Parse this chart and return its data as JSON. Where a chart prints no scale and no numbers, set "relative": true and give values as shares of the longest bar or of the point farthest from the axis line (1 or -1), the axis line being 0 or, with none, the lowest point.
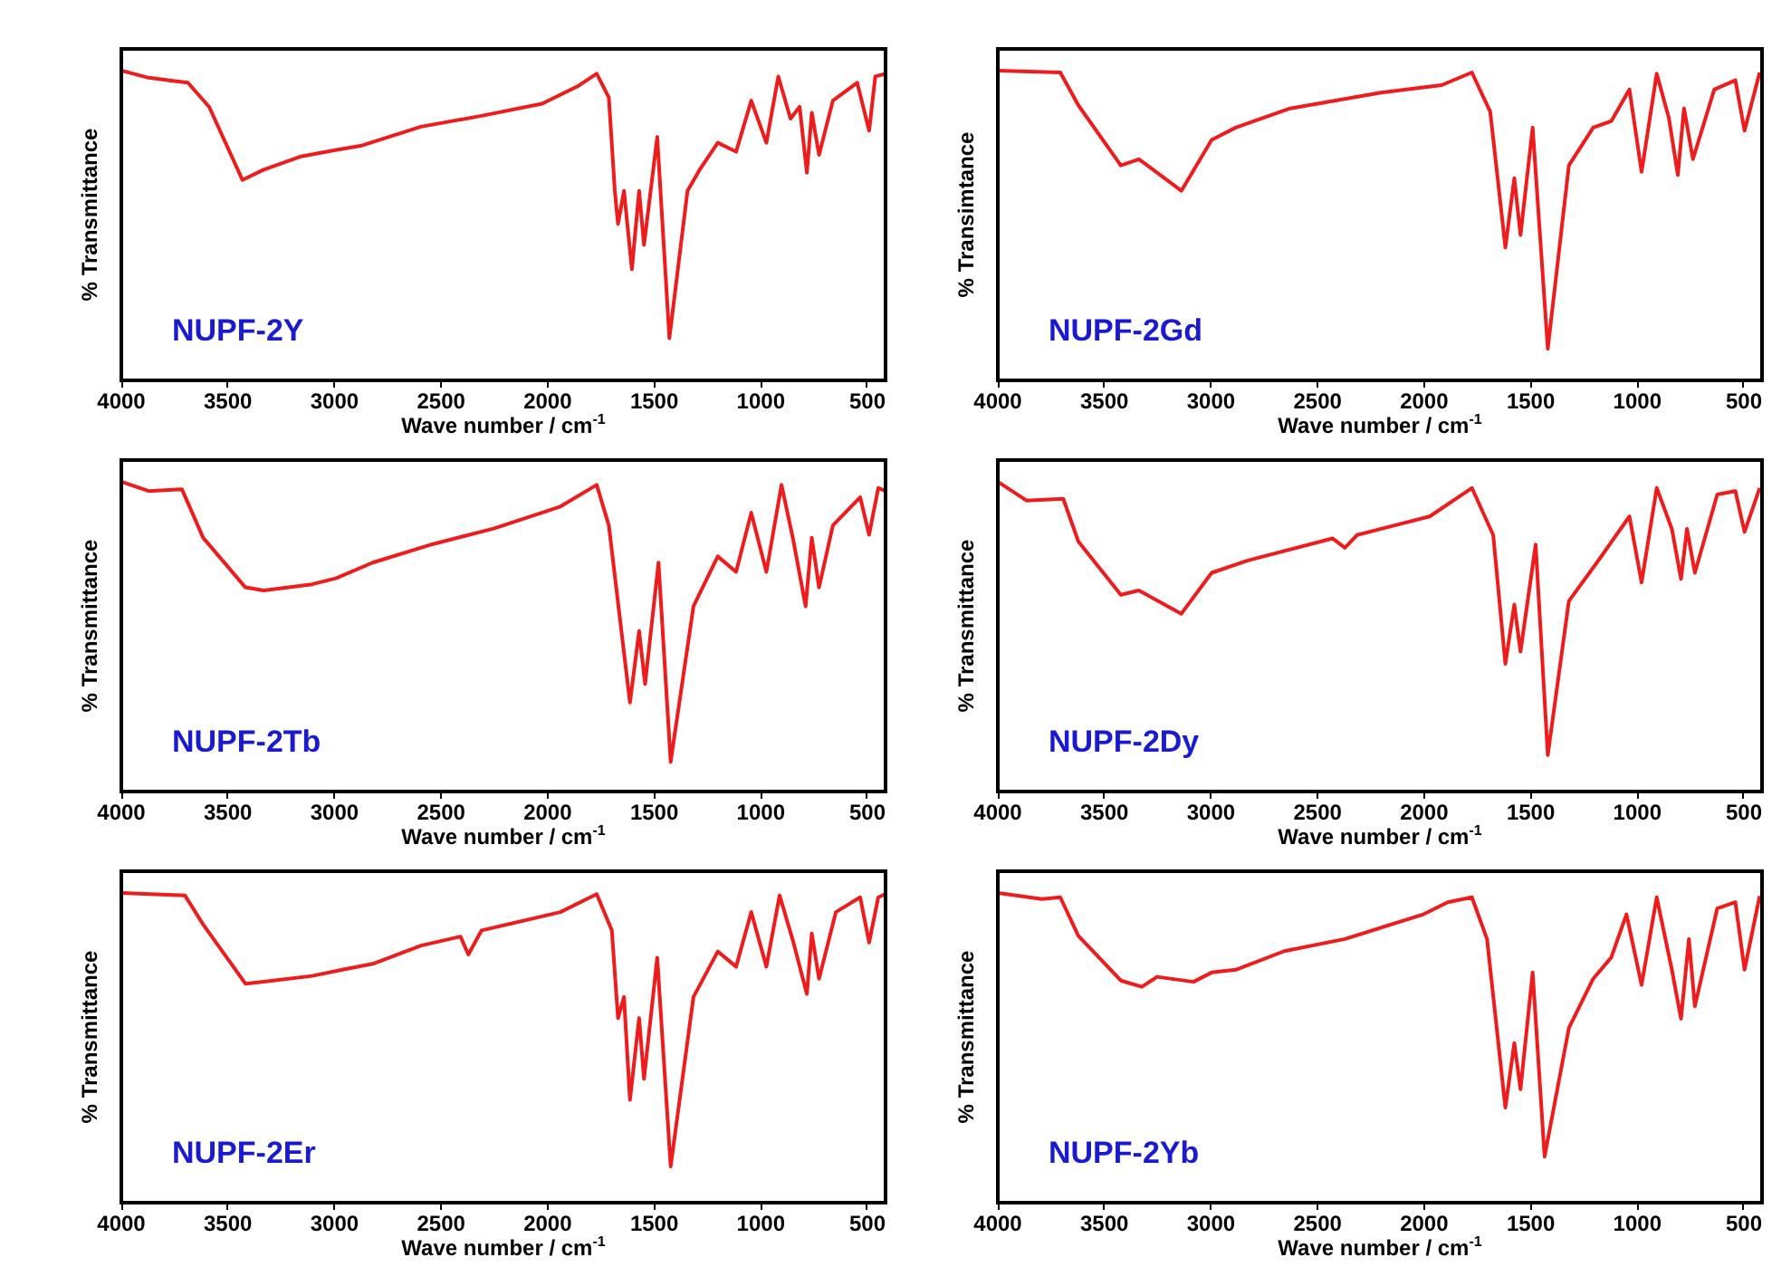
{
  "chart_data": [
    {
      "type": "line",
      "ylabel": "% Transmittance",
      "xlabel": "Wave number / cm$^{-1}$",
      "relative": true,
      "xlim": [
        4000,
        415
      ],
      "xticks": [
        4000,
        3500,
        3000,
        2500,
        2000,
        1500,
        1000,
        500
      ],
      "annotations": [
        "NUPF-2Y"
      ],
      "x": [
        4000,
        3872,
        3759,
        3688,
        3588,
        3432,
        3332,
        3162,
        2991,
        2878,
        2594,
        2310,
        2026,
        1855,
        1770,
        1713,
        1685,
        1670,
        1642,
        1605,
        1571,
        1548,
        1486,
        1429,
        1344,
        1287,
        1202,
        1116,
        1045,
        974,
        918,
        861,
        818,
        784,
        761,
        727,
        662,
        548,
        492,
        463,
        415
      ],
      "series": [
        {
          "color": "#ee1c1c",
          "values": [
            1.0,
            0.977,
            0.967,
            0.961,
            0.883,
            0.647,
            0.68,
            0.722,
            0.744,
            0.757,
            0.819,
            0.854,
            0.893,
            0.951,
            0.99,
            0.913,
            0.612,
            0.505,
            0.612,
            0.359,
            0.612,
            0.437,
            0.786,
            0.136,
            0.612,
            0.68,
            0.767,
            0.738,
            0.903,
            0.767,
            0.981,
            0.845,
            0.883,
            0.67,
            0.864,
            0.728,
            0.903,
            0.961,
            0.806,
            0.981,
            0.99
          ]
        }
      ]
    },
    {
      "type": "line",
      "ylabel": "% Transimtance",
      "xlabel": "Wave number / cm$^{-1}$",
      "relative": true,
      "xlim": [
        4000,
        415
      ],
      "xticks": [
        4000,
        3500,
        3000,
        2500,
        2000,
        1500,
        1000,
        500
      ],
      "annotations": [
        "NUPF-2Gd"
      ],
      "x": [
        4000,
        3707,
        3622,
        3423,
        3338,
        3139,
        2997,
        2884,
        2628,
        2202,
        1918,
        1776,
        1690,
        1619,
        1577,
        1548,
        1491,
        1420,
        1321,
        1207,
        1122,
        1037,
        980,
        909,
        852,
        810,
        781,
        739,
        639,
        540,
        497,
        426
      ],
      "series": [
        {
          "color": "#ee1c1c",
          "values": [
            1.0,
            0.994,
            0.888,
            0.694,
            0.714,
            0.612,
            0.776,
            0.816,
            0.878,
            0.929,
            0.953,
            0.994,
            0.867,
            0.429,
            0.653,
            0.469,
            0.816,
            0.102,
            0.694,
            0.816,
            0.837,
            0.939,
            0.673,
            0.99,
            0.847,
            0.663,
            0.878,
            0.714,
            0.939,
            0.969,
            0.806,
            0.994
          ]
        }
      ]
    },
    {
      "type": "line",
      "ylabel": "% Transmittance",
      "xlabel": "Wave number / cm$^{-1}$",
      "relative": true,
      "xlim": [
        4000,
        415
      ],
      "xticks": [
        4000,
        3500,
        3000,
        2500,
        2000,
        1500,
        1000,
        500
      ],
      "annotations": [
        "NUPF-2Tb"
      ],
      "x": [
        4000,
        3872,
        3716,
        3616,
        3418,
        3332,
        3105,
        2991,
        2821,
        2537,
        2253,
        1940,
        1770,
        1713,
        1614,
        1571,
        1543,
        1480,
        1423,
        1316,
        1202,
        1116,
        1045,
        974,
        903,
        847,
        790,
        761,
        727,
        662,
        534,
        492,
        449,
        415
      ],
      "series": [
        {
          "color": "#ee1c1c",
          "values": [
            1.0,
            0.97,
            0.976,
            0.819,
            0.659,
            0.649,
            0.669,
            0.689,
            0.739,
            0.799,
            0.849,
            0.92,
            0.99,
            0.859,
            0.287,
            0.518,
            0.347,
            0.739,
            0.096,
            0.598,
            0.759,
            0.709,
            0.9,
            0.709,
            0.99,
            0.809,
            0.598,
            0.819,
            0.659,
            0.859,
            0.95,
            0.829,
            0.98,
            0.97
          ]
        }
      ]
    },
    {
      "type": "line",
      "ylabel": "% Transmittance",
      "xlabel": "Wave number / cm$^{-1}$",
      "relative": true,
      "xlim": [
        4000,
        415
      ],
      "xticks": [
        4000,
        3500,
        3000,
        2500,
        2000,
        1500,
        1000,
        500
      ],
      "annotations": [
        "NUPF-2Dy"
      ],
      "x": [
        4000,
        3864,
        3693,
        3622,
        3423,
        3338,
        3139,
        2997,
        2827,
        2429,
        2372,
        2315,
        1974,
        1776,
        1676,
        1619,
        1577,
        1548,
        1477,
        1420,
        1321,
        1193,
        1037,
        980,
        909,
        838,
        795,
        767,
        730,
        625,
        540,
        497,
        426
      ],
      "series": [
        {
          "color": "#ee1c1c",
          "values": [
            1.0,
            0.939,
            0.945,
            0.807,
            0.635,
            0.649,
            0.574,
            0.706,
            0.746,
            0.817,
            0.787,
            0.828,
            0.888,
            0.98,
            0.828,
            0.412,
            0.604,
            0.452,
            0.797,
            0.118,
            0.615,
            0.736,
            0.888,
            0.675,
            0.98,
            0.848,
            0.686,
            0.848,
            0.706,
            0.959,
            0.97,
            0.838,
            0.98
          ]
        }
      ]
    },
    {
      "type": "line",
      "ylabel": "% Transmittance",
      "xlabel": "Wave number / cm$^{-1}$",
      "relative": true,
      "xlim": [
        4000,
        415
      ],
      "xticks": [
        4000,
        3500,
        3000,
        2500,
        2000,
        1500,
        1000,
        500
      ],
      "annotations": [
        "NUPF-2Er"
      ],
      "x": [
        4000,
        3702,
        3616,
        3418,
        3332,
        3105,
        2963,
        2821,
        2594,
        2409,
        2372,
        2310,
        1940,
        1770,
        1699,
        1670,
        1642,
        1614,
        1571,
        1548,
        1486,
        1423,
        1316,
        1202,
        1116,
        1045,
        974,
        912,
        847,
        784,
        761,
        727,
        648,
        534,
        492,
        449,
        415
      ],
      "series": [
        {
          "color": "#ee1c1c",
          "values": [
            1.0,
            0.992,
            0.898,
            0.707,
            0.713,
            0.732,
            0.752,
            0.771,
            0.83,
            0.859,
            0.801,
            0.879,
            0.938,
            0.996,
            0.879,
            0.596,
            0.664,
            0.332,
            0.596,
            0.4,
            0.791,
            0.117,
            0.664,
            0.811,
            0.762,
            0.938,
            0.762,
            0.992,
            0.84,
            0.674,
            0.869,
            0.723,
            0.938,
            0.986,
            0.84,
            0.986,
            0.996
          ]
        }
      ]
    },
    {
      "type": "line",
      "ylabel": "% Transmittance",
      "xlabel": "Wave number / cm$^{-1}$",
      "relative": true,
      "xlim": [
        4000,
        415
      ],
      "xticks": [
        4000,
        3500,
        3000,
        2500,
        2000,
        1500,
        1000,
        500
      ],
      "annotations": [
        "NUPF-2Yb"
      ],
      "x": [
        4000,
        3793,
        3707,
        3622,
        3423,
        3324,
        3253,
        3082,
        2997,
        2884,
        2656,
        2372,
        2003,
        1889,
        1776,
        1705,
        1619,
        1577,
        1548,
        1491,
        1435,
        1321,
        1207,
        1122,
        1051,
        980,
        909,
        838,
        795,
        758,
        730,
        625,
        540,
        497,
        426
      ],
      "series": [
        {
          "color": "#ee1c1c",
          "values": [
            1.0,
            0.98,
            0.986,
            0.861,
            0.717,
            0.697,
            0.729,
            0.713,
            0.743,
            0.752,
            0.812,
            0.851,
            0.931,
            0.97,
            0.986,
            0.851,
            0.307,
            0.515,
            0.366,
            0.743,
            0.149,
            0.564,
            0.723,
            0.792,
            0.931,
            0.703,
            0.986,
            0.752,
            0.594,
            0.851,
            0.634,
            0.95,
            0.97,
            0.752,
            0.99
          ]
        }
      ]
    }
  ]
}
